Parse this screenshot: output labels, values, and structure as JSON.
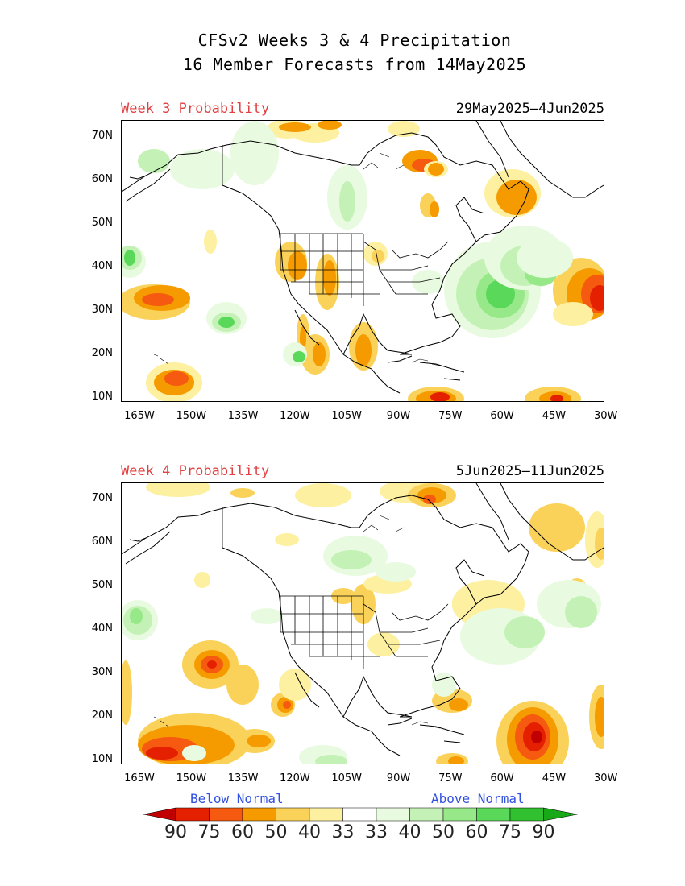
{
  "title_line1": "CFSv2 Weeks 3 & 4 Precipitation",
  "title_line2": "16 Member Forecasts from 14May2025",
  "panels": [
    {
      "label": "Week 3 Probability",
      "dates": "29May2025—4Jun2025"
    },
    {
      "label": "Week 4 Probability",
      "dates": "5Jun2025—11Jun2025"
    }
  ],
  "lat_labels": [
    "70N",
    "60N",
    "50N",
    "40N",
    "30N",
    "20N",
    "10N"
  ],
  "lon_labels": [
    "165W",
    "150W",
    "135W",
    "120W",
    "105W",
    "90W",
    "75W",
    "60W",
    "45W",
    "30W"
  ],
  "legend": {
    "below_label": "Below Normal",
    "above_label": "Above Normal",
    "values": [
      "90",
      "75",
      "60",
      "50",
      "40",
      "33",
      "33",
      "40",
      "50",
      "60",
      "75",
      "90"
    ],
    "colors": [
      "#c00000",
      "#e42000",
      "#f55a10",
      "#f59b00",
      "#fad25a",
      "#fdf0a0",
      "#ffffff",
      "#e8fbe0",
      "#c4f2b6",
      "#96e888",
      "#5ad85a",
      "#30c030",
      "#18a818"
    ]
  },
  "colors": {
    "title_label": "#e04040",
    "legend_text": "#3050e0"
  }
}
